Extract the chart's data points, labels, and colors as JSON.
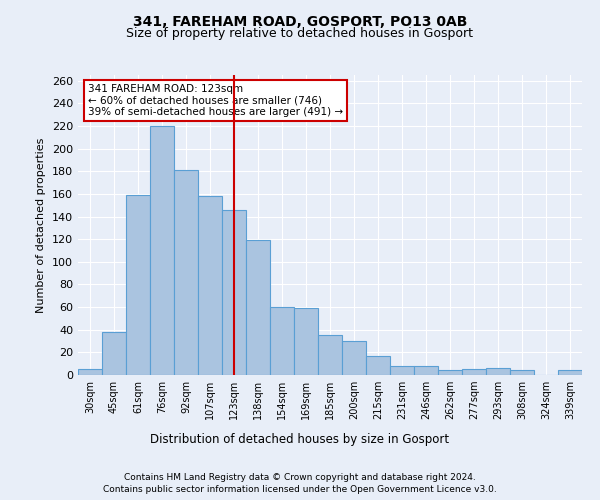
{
  "title1": "341, FAREHAM ROAD, GOSPORT, PO13 0AB",
  "title2": "Size of property relative to detached houses in Gosport",
  "xlabel": "Distribution of detached houses by size in Gosport",
  "ylabel": "Number of detached properties",
  "categories": [
    "30sqm",
    "45sqm",
    "61sqm",
    "76sqm",
    "92sqm",
    "107sqm",
    "123sqm",
    "138sqm",
    "154sqm",
    "169sqm",
    "185sqm",
    "200sqm",
    "215sqm",
    "231sqm",
    "246sqm",
    "262sqm",
    "277sqm",
    "293sqm",
    "308sqm",
    "324sqm",
    "339sqm"
  ],
  "values": [
    5,
    38,
    159,
    220,
    181,
    158,
    146,
    119,
    60,
    59,
    35,
    30,
    17,
    8,
    8,
    4,
    5,
    6,
    4,
    0,
    4
  ],
  "bar_color": "#aac4e0",
  "bar_edge_color": "#5a9fd4",
  "highlight_index": 6,
  "highlight_line_color": "#cc0000",
  "annotation_line1": "341 FAREHAM ROAD: 123sqm",
  "annotation_line2": "← 60% of detached houses are smaller (746)",
  "annotation_line3": "39% of semi-detached houses are larger (491) →",
  "annotation_box_color": "#ffffff",
  "annotation_box_edge": "#cc0000",
  "background_color": "#e8eef8",
  "fig_color": "#e8eef8",
  "grid_color": "#ffffff",
  "footer1": "Contains HM Land Registry data © Crown copyright and database right 2024.",
  "footer2": "Contains public sector information licensed under the Open Government Licence v3.0.",
  "ylim": [
    0,
    265
  ],
  "yticks": [
    0,
    20,
    40,
    60,
    80,
    100,
    120,
    140,
    160,
    180,
    200,
    220,
    240,
    260
  ]
}
